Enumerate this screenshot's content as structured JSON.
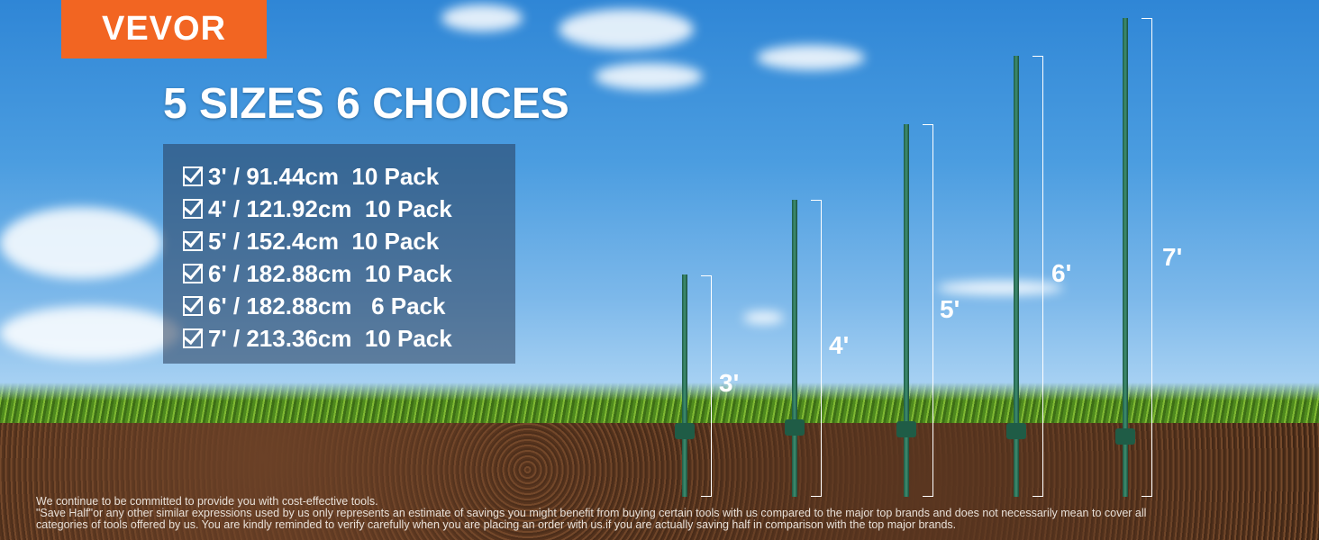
{
  "brand": {
    "logo": "VEVOR",
    "color": "#f26522"
  },
  "headline": "5 SIZES 6 CHOICES",
  "options": [
    "3' / 91.44cm  10 Pack",
    "4' / 121.92cm  10 Pack",
    "5' / 152.4cm  10 Pack",
    "6' / 182.88cm  10 Pack",
    "6' / 182.88cm   6 Pack",
    "7' / 213.36cm  10 Pack"
  ],
  "post_labels": [
    "3'",
    "4'",
    "5'",
    "6'",
    "7'"
  ],
  "disclaimer": [
    "We continue to be committed to provide you with cost-effective tools.",
    "\"Save Half\"or any other similar expressions used by us only represents an estimate of savings you might benefit from buying certain tools with us compared to the major top brands and does not necessarily mean to cover all",
    "categories of tools offered by us. You are kindly reminded to verify carefully when you are placing an order with us.if you are actually saving half in comparison with the top major brands."
  ]
}
